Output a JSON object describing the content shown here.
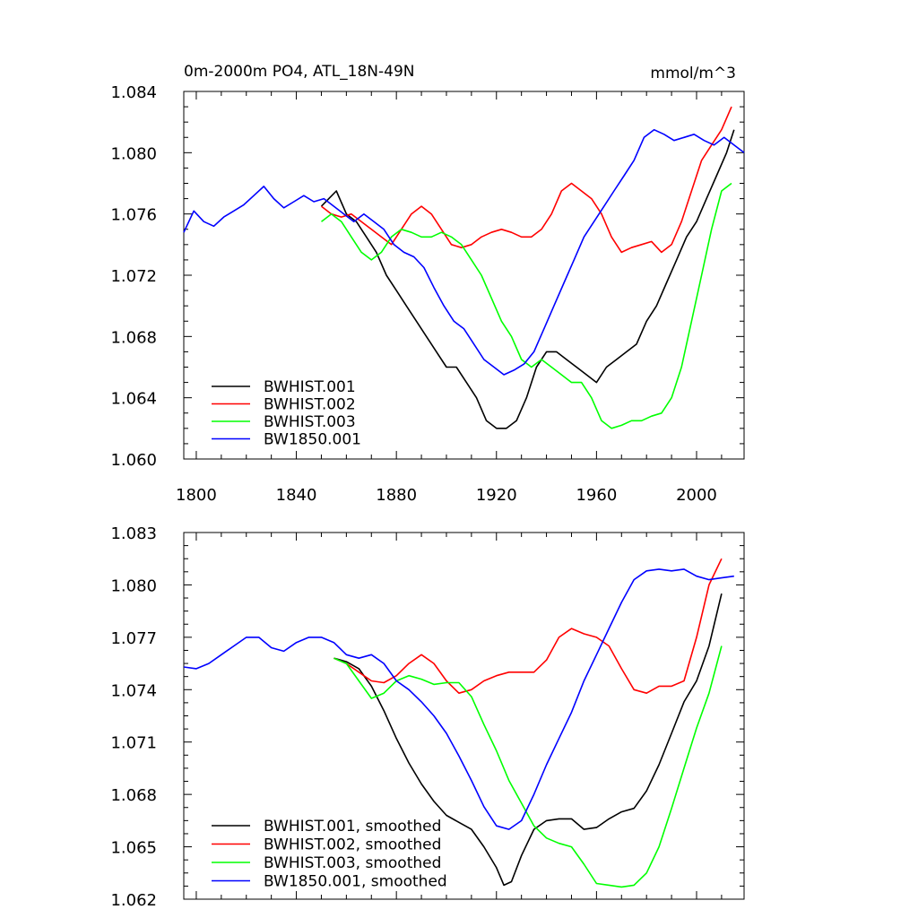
{
  "chart_data": [
    {
      "type": "line",
      "title": "0m-2000m PO4, ATL_18N-49N",
      "units": "mmol/m^3",
      "xlim": [
        1795,
        2019
      ],
      "ylim": [
        1.06,
        1.084
      ],
      "xticks": [
        1800,
        1840,
        1880,
        1920,
        1960,
        2000
      ],
      "yticks": [
        1.06,
        1.064,
        1.068,
        1.072,
        1.076,
        1.08,
        1.084
      ],
      "ytick_labels": [
        "1.060",
        "1.064",
        "1.068",
        "1.072",
        "1.076",
        "1.080",
        "1.084"
      ],
      "legend_position": "bottom-left",
      "series": [
        {
          "name": "BWHIST.001",
          "color": "#000000",
          "x": [
            1850,
            1853,
            1856,
            1860,
            1864,
            1868,
            1872,
            1876,
            1880,
            1884,
            1888,
            1892,
            1896,
            1900,
            1904,
            1908,
            1912,
            1916,
            1920,
            1924,
            1928,
            1932,
            1936,
            1940,
            1944,
            1948,
            1952,
            1956,
            1960,
            1964,
            1968,
            1972,
            1976,
            1980,
            1984,
            1988,
            1992,
            1996,
            2000,
            2004,
            2008,
            2012,
            2015
          ],
          "y": [
            1.0765,
            1.077,
            1.0775,
            1.076,
            1.0755,
            1.0745,
            1.0735,
            1.072,
            1.071,
            1.07,
            1.069,
            1.068,
            1.067,
            1.066,
            1.066,
            1.065,
            1.064,
            1.0625,
            1.062,
            1.062,
            1.0625,
            1.064,
            1.066,
            1.067,
            1.067,
            1.0665,
            1.066,
            1.0655,
            1.065,
            1.066,
            1.0665,
            1.067,
            1.0675,
            1.069,
            1.07,
            1.0715,
            1.073,
            1.0745,
            1.0755,
            1.077,
            1.0785,
            1.08,
            1.0815
          ]
        },
        {
          "name": "BWHIST.002",
          "color": "#ff0000",
          "x": [
            1850,
            1854,
            1858,
            1862,
            1866,
            1870,
            1874,
            1878,
            1882,
            1886,
            1890,
            1894,
            1898,
            1902,
            1906,
            1910,
            1914,
            1918,
            1922,
            1926,
            1930,
            1934,
            1938,
            1942,
            1946,
            1950,
            1954,
            1958,
            1962,
            1966,
            1970,
            1974,
            1978,
            1982,
            1986,
            1990,
            1994,
            1998,
            2002,
            2006,
            2010,
            2014
          ],
          "y": [
            1.0765,
            1.076,
            1.0758,
            1.076,
            1.0755,
            1.075,
            1.0745,
            1.074,
            1.075,
            1.076,
            1.0765,
            1.076,
            1.075,
            1.074,
            1.0738,
            1.074,
            1.0745,
            1.0748,
            1.075,
            1.0748,
            1.0745,
            1.0745,
            1.075,
            1.076,
            1.0775,
            1.078,
            1.0775,
            1.077,
            1.076,
            1.0745,
            1.0735,
            1.0738,
            1.074,
            1.0742,
            1.0735,
            1.074,
            1.0755,
            1.0775,
            1.0795,
            1.0805,
            1.0815,
            1.083
          ]
        },
        {
          "name": "BWHIST.003",
          "color": "#00ff00",
          "x": [
            1850,
            1854,
            1858,
            1862,
            1866,
            1870,
            1874,
            1878,
            1882,
            1886,
            1890,
            1894,
            1898,
            1902,
            1906,
            1910,
            1914,
            1918,
            1922,
            1926,
            1930,
            1934,
            1938,
            1942,
            1946,
            1950,
            1954,
            1958,
            1962,
            1966,
            1970,
            1974,
            1978,
            1982,
            1986,
            1990,
            1994,
            1998,
            2002,
            2006,
            2010,
            2014
          ],
          "y": [
            1.0755,
            1.076,
            1.0755,
            1.0745,
            1.0735,
            1.073,
            1.0735,
            1.0745,
            1.075,
            1.0748,
            1.0745,
            1.0745,
            1.0748,
            1.0745,
            1.074,
            1.073,
            1.072,
            1.0705,
            1.069,
            1.068,
            1.0665,
            1.066,
            1.0665,
            1.066,
            1.0655,
            1.065,
            1.065,
            1.064,
            1.0625,
            1.062,
            1.0622,
            1.0625,
            1.0625,
            1.0628,
            1.063,
            1.064,
            1.066,
            1.069,
            1.072,
            1.075,
            1.0775,
            1.078
          ]
        },
        {
          "name": "BW1850.001",
          "color": "#0000ff",
          "x": [
            1795,
            1799,
            1803,
            1807,
            1811,
            1815,
            1819,
            1823,
            1827,
            1831,
            1835,
            1839,
            1843,
            1847,
            1851,
            1855,
            1859,
            1863,
            1867,
            1871,
            1875,
            1879,
            1883,
            1887,
            1891,
            1895,
            1899,
            1903,
            1907,
            1911,
            1915,
            1919,
            1923,
            1927,
            1931,
            1935,
            1939,
            1943,
            1947,
            1951,
            1955,
            1959,
            1963,
            1967,
            1971,
            1975,
            1979,
            1983,
            1987,
            1991,
            1995,
            1999,
            2003,
            2007,
            2011,
            2015,
            2019
          ],
          "y": [
            1.0748,
            1.0762,
            1.0755,
            1.0752,
            1.0758,
            1.0762,
            1.0766,
            1.0772,
            1.0778,
            1.077,
            1.0764,
            1.0768,
            1.0772,
            1.0768,
            1.077,
            1.0765,
            1.076,
            1.0755,
            1.076,
            1.0755,
            1.075,
            1.074,
            1.0735,
            1.0732,
            1.0725,
            1.0712,
            1.07,
            1.069,
            1.0685,
            1.0675,
            1.0665,
            1.066,
            1.0655,
            1.0658,
            1.0662,
            1.067,
            1.0685,
            1.07,
            1.0715,
            1.073,
            1.0745,
            1.0755,
            1.0765,
            1.0775,
            1.0785,
            1.0795,
            1.081,
            1.0815,
            1.0812,
            1.0808,
            1.081,
            1.0812,
            1.0808,
            1.0805,
            1.081,
            1.0805,
            1.08
          ]
        }
      ]
    },
    {
      "type": "line",
      "title": "",
      "xlim": [
        1795,
        2019
      ],
      "ylim": [
        1.062,
        1.083
      ],
      "xticks": [
        1800,
        1840,
        1880,
        1920,
        1960,
        2000
      ],
      "yticks": [
        1.062,
        1.065,
        1.068,
        1.071,
        1.074,
        1.077,
        1.08,
        1.083
      ],
      "ytick_labels": [
        "1.062",
        "1.065",
        "1.068",
        "1.071",
        "1.074",
        "1.077",
        "1.080",
        "1.083"
      ],
      "legend_position": "bottom-left",
      "series": [
        {
          "name": "BWHIST.001, smoothed",
          "color": "#000000",
          "x": [
            1855,
            1860,
            1865,
            1870,
            1875,
            1880,
            1885,
            1890,
            1895,
            1900,
            1905,
            1910,
            1915,
            1920,
            1923,
            1926,
            1930,
            1935,
            1940,
            1945,
            1950,
            1955,
            1960,
            1965,
            1970,
            1975,
            1980,
            1985,
            1990,
            1995,
            2000,
            2005,
            2010
          ],
          "y": [
            1.0758,
            1.0756,
            1.0752,
            1.0742,
            1.0728,
            1.0712,
            1.0698,
            1.0686,
            1.0676,
            1.0668,
            1.0664,
            1.066,
            1.065,
            1.0638,
            1.0628,
            1.063,
            1.0645,
            1.066,
            1.0665,
            1.0666,
            1.0666,
            1.066,
            1.0661,
            1.0666,
            1.067,
            1.0672,
            1.0682,
            1.0697,
            1.0715,
            1.0733,
            1.0745,
            1.0765,
            1.0795
          ]
        },
        {
          "name": "BWHIST.002, smoothed",
          "color": "#ff0000",
          "x": [
            1855,
            1860,
            1865,
            1870,
            1875,
            1880,
            1885,
            1890,
            1895,
            1900,
            1905,
            1910,
            1915,
            1920,
            1925,
            1930,
            1935,
            1940,
            1945,
            1950,
            1955,
            1960,
            1965,
            1970,
            1975,
            1980,
            1985,
            1990,
            1995,
            2000,
            2005,
            2010
          ],
          "y": [
            1.0758,
            1.0755,
            1.075,
            1.0745,
            1.0744,
            1.0748,
            1.0755,
            1.076,
            1.0755,
            1.0745,
            1.0738,
            1.074,
            1.0745,
            1.0748,
            1.075,
            1.075,
            1.075,
            1.0757,
            1.077,
            1.0775,
            1.0772,
            1.077,
            1.0765,
            1.0752,
            1.074,
            1.0738,
            1.0742,
            1.0742,
            1.0745,
            1.077,
            1.08,
            1.0815
          ]
        },
        {
          "name": "BWHIST.003, smoothed",
          "color": "#00ff00",
          "x": [
            1855,
            1860,
            1865,
            1870,
            1875,
            1880,
            1885,
            1890,
            1895,
            1900,
            1905,
            1910,
            1915,
            1920,
            1925,
            1930,
            1935,
            1940,
            1945,
            1950,
            1955,
            1960,
            1965,
            1970,
            1975,
            1980,
            1985,
            1990,
            1995,
            2000,
            2005,
            2010
          ],
          "y": [
            1.0758,
            1.0755,
            1.0745,
            1.0735,
            1.0738,
            1.0745,
            1.0748,
            1.0746,
            1.0743,
            1.0744,
            1.0744,
            1.0736,
            1.072,
            1.0705,
            1.0688,
            1.0675,
            1.0662,
            1.0655,
            1.0652,
            1.065,
            1.064,
            1.0629,
            1.0628,
            1.0627,
            1.0628,
            1.0635,
            1.065,
            1.0672,
            1.0695,
            1.0718,
            1.0738,
            1.0765
          ]
        },
        {
          "name": "BW1850.001, smoothed",
          "color": "#0000ff",
          "x": [
            1795,
            1800,
            1805,
            1810,
            1815,
            1820,
            1825,
            1830,
            1835,
            1840,
            1845,
            1850,
            1855,
            1860,
            1865,
            1870,
            1875,
            1880,
            1885,
            1890,
            1895,
            1900,
            1905,
            1910,
            1915,
            1920,
            1925,
            1930,
            1935,
            1940,
            1945,
            1950,
            1955,
            1960,
            1965,
            1970,
            1975,
            1980,
            1985,
            1990,
            1995,
            2000,
            2005,
            2010,
            2015
          ],
          "y": [
            1.0753,
            1.0752,
            1.0755,
            1.076,
            1.0765,
            1.077,
            1.077,
            1.0764,
            1.0762,
            1.0767,
            1.077,
            1.077,
            1.0767,
            1.076,
            1.0758,
            1.076,
            1.0755,
            1.0745,
            1.074,
            1.0733,
            1.0725,
            1.0715,
            1.0702,
            1.0688,
            1.0673,
            1.0662,
            1.066,
            1.0665,
            1.068,
            1.0697,
            1.0712,
            1.0727,
            1.0745,
            1.076,
            1.0775,
            1.079,
            1.0803,
            1.0808,
            1.0809,
            1.0808,
            1.0809,
            1.0805,
            1.0803,
            1.0804,
            1.0805
          ]
        }
      ]
    }
  ]
}
